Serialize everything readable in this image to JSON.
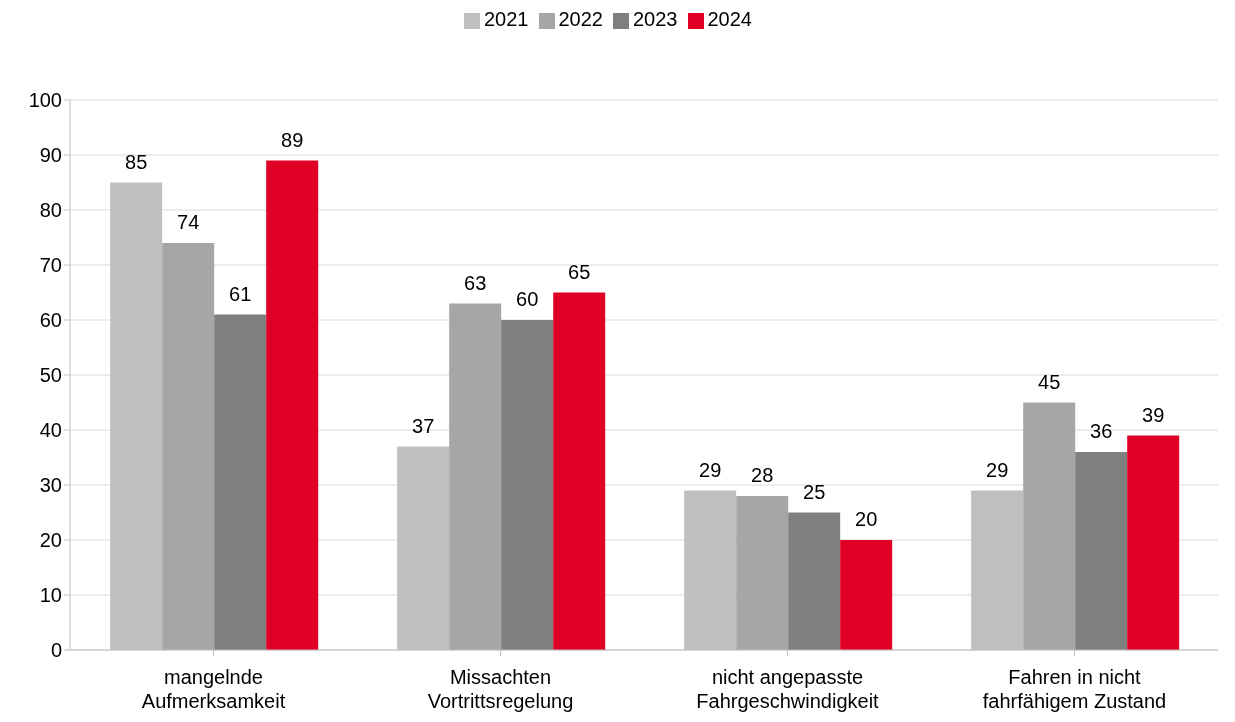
{
  "chart_data": {
    "type": "bar",
    "categories": [
      "mangelnde Aufmerksamkeit",
      "Missachten Vortrittsregelung",
      "nicht angepasste Fahrgeschwindigkeit",
      "Fahren in nicht fahrfähigem Zustand"
    ],
    "series": [
      {
        "name": "2021",
        "color": "#bfbfbf",
        "values": [
          85,
          37,
          29,
          29
        ]
      },
      {
        "name": "2022",
        "color": "#a6a6a6",
        "values": [
          74,
          63,
          28,
          45
        ]
      },
      {
        "name": "2023",
        "color": "#7f7f7f",
        "values": [
          61,
          60,
          25,
          36
        ]
      },
      {
        "name": "2024",
        "color": "#e10025",
        "values": [
          89,
          65,
          20,
          39
        ]
      }
    ],
    "ylim": [
      0,
      100
    ],
    "yticks": [
      0,
      10,
      20,
      30,
      40,
      50,
      60,
      70,
      80,
      90,
      100
    ],
    "grid": "y",
    "legend": "top",
    "data_labels": true
  }
}
